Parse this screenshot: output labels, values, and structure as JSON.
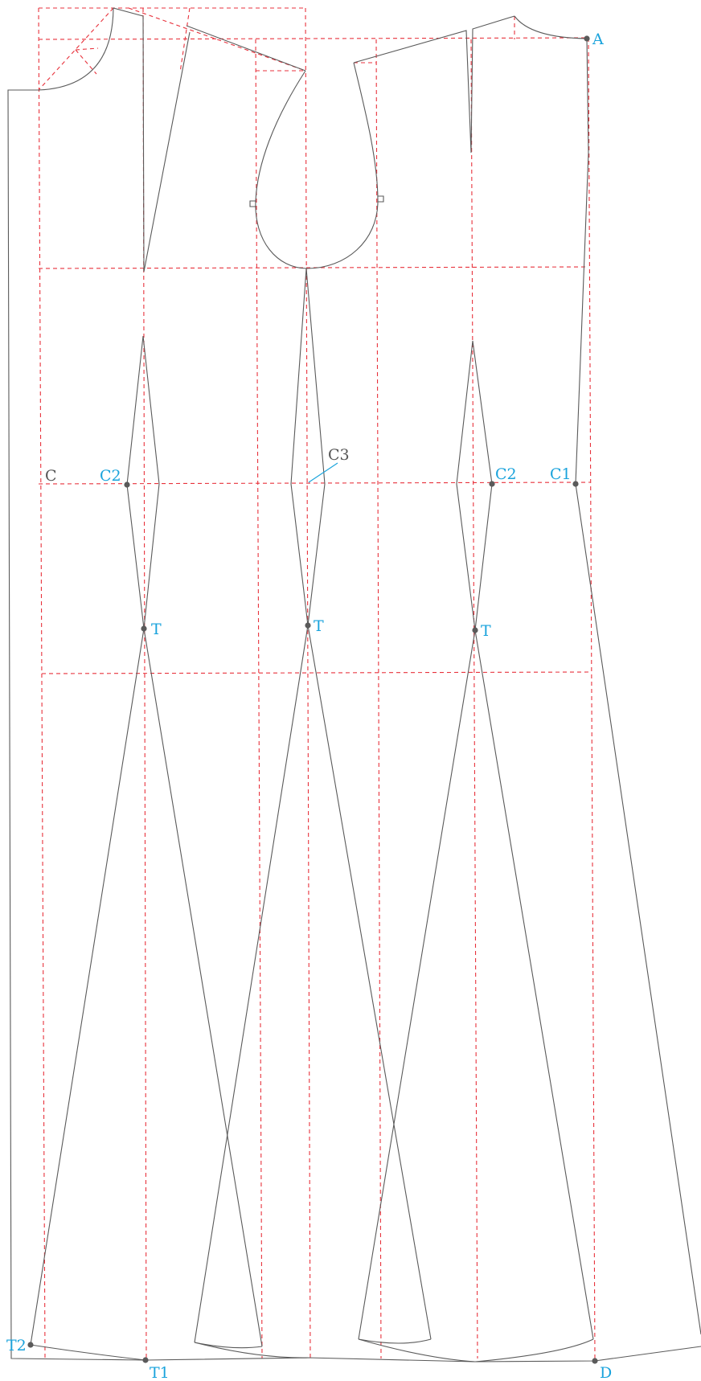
{
  "diagram": {
    "labels": {
      "A": "A",
      "C": "C",
      "C1": "C1",
      "C2_left": "C2",
      "C2_right": "C2",
      "C3": "C3",
      "T_1": "T",
      "T_2": "T",
      "T_3": "T",
      "T1": "T1",
      "T2": "T2",
      "D": "D"
    },
    "colors": {
      "construction_line": "#e8323c",
      "outline": "#5a5a5a",
      "point_label": "#1aa3dc",
      "plain_label": "#555555"
    }
  }
}
